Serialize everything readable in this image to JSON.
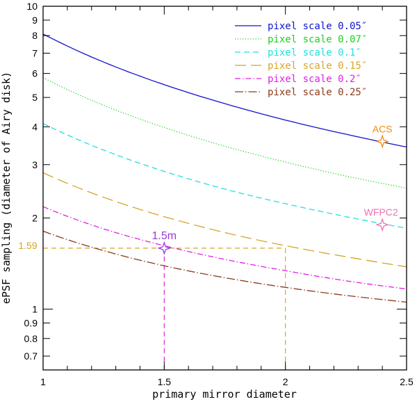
{
  "chart_data": {
    "type": "line",
    "xlabel": "primary mirror diameter",
    "ylabel": "ePSF sampling (diameter of Airy disk)",
    "xlim": [
      1,
      2.5
    ],
    "ylim": [
      0.63,
      10
    ],
    "yscale": "log",
    "grid": false,
    "legend_position": "top-right",
    "x_ticks": [
      "1",
      "1.5",
      "2",
      "2.5"
    ],
    "x_tick_values": [
      1,
      1.5,
      2,
      2.5
    ],
    "y_ticks": [
      "0.7",
      "0.8",
      "0.9",
      "1",
      "2",
      "3",
      "4",
      "5",
      "6",
      "7",
      "8",
      "9",
      "10"
    ],
    "y_tick_values": [
      0.7,
      0.8,
      0.9,
      1,
      2,
      3,
      4,
      5,
      6,
      7,
      8,
      9,
      10
    ],
    "x": [
      1,
      1.25,
      1.5,
      1.75,
      2,
      2.25,
      2.5
    ],
    "series": [
      {
        "name": "pixel scale 0.05″",
        "color": "#1010d0",
        "dash": "solid",
        "values": [
          8.1,
          6.54,
          5.51,
          4.77,
          4.21,
          3.78,
          3.43
        ]
      },
      {
        "name": "pixel scale 0.07″",
        "color": "#20d020",
        "dash": "dotted",
        "values": [
          5.81,
          4.71,
          3.98,
          3.45,
          3.06,
          2.75,
          2.51
        ]
      },
      {
        "name": "pixel scale 0.1″",
        "color": "#20e0e0",
        "dash": "dashed",
        "values": [
          4.1,
          3.35,
          2.85,
          2.49,
          2.23,
          2.02,
          1.85
        ]
      },
      {
        "name": "pixel scale 0.15″",
        "color": "#d4a528",
        "dash": "longdash",
        "values": [
          2.82,
          2.34,
          2.02,
          1.79,
          1.62,
          1.49,
          1.38
        ]
      },
      {
        "name": "pixel scale 0.2″",
        "color": "#e020e0",
        "dash": "dashdot",
        "values": [
          2.18,
          1.84,
          1.62,
          1.46,
          1.34,
          1.24,
          1.166
        ]
      },
      {
        "name": "pixel scale 0.25″",
        "color": "#8b3a1a",
        "dash": "dotlong",
        "values": [
          1.81,
          1.56,
          1.39,
          1.27,
          1.18,
          1.11,
          1.055
        ]
      }
    ],
    "annotations": [
      {
        "label": "ACS",
        "x": 2.4,
        "y": 3.58,
        "color": "#f08a10"
      },
      {
        "label": "WFPC2",
        "x": 2.4,
        "y": 1.9,
        "color": "#f070b0"
      },
      {
        "label": "1.5m",
        "x": 1.5,
        "y": 1.59,
        "color": "#9a3ad8"
      }
    ],
    "reference_lines": {
      "value_label": "1.59",
      "y": 1.59,
      "color": "#d4a528",
      "vertical": [
        {
          "x": 1.5,
          "color": "#e020e0"
        },
        {
          "x": 2,
          "color": "#d4a528"
        }
      ]
    }
  }
}
